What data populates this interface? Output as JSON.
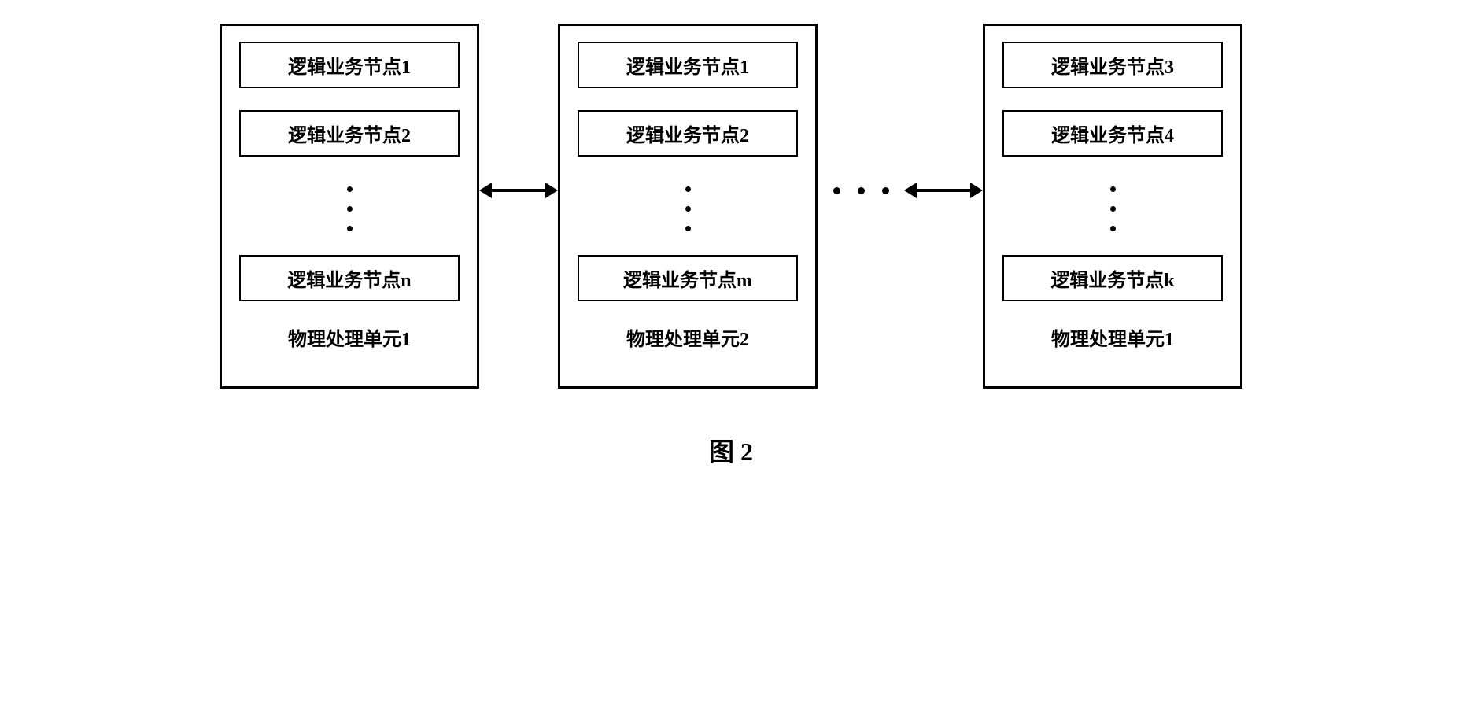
{
  "type": "block-diagram",
  "caption": "图 2",
  "layout": {
    "unit_count": 3,
    "connectors": [
      "double-arrow",
      "h-dots",
      "double-arrow"
    ],
    "background_color": "#ffffff",
    "border_color": "#000000",
    "text_color": "#000000",
    "border_width_outer": 3,
    "border_width_inner": 2,
    "font_family": "SimSun",
    "node_fontsize": 24,
    "label_fontsize": 24,
    "caption_fontsize": 32
  },
  "units": [
    {
      "label": "物理处理单元1",
      "nodes": [
        "逻辑业务节点1",
        "逻辑业务节点2",
        "逻辑业务节点n"
      ],
      "has_vdots_after_index": 1
    },
    {
      "label": "物理处理单元2",
      "nodes": [
        "逻辑业务节点1",
        "逻辑业务节点2",
        "逻辑业务节点m"
      ],
      "has_vdots_after_index": 1
    },
    {
      "label": "物理处理单元1",
      "nodes": [
        "逻辑业务节点3",
        "逻辑业务节点4",
        "逻辑业务节点k"
      ],
      "has_vdots_after_index": 1
    }
  ]
}
